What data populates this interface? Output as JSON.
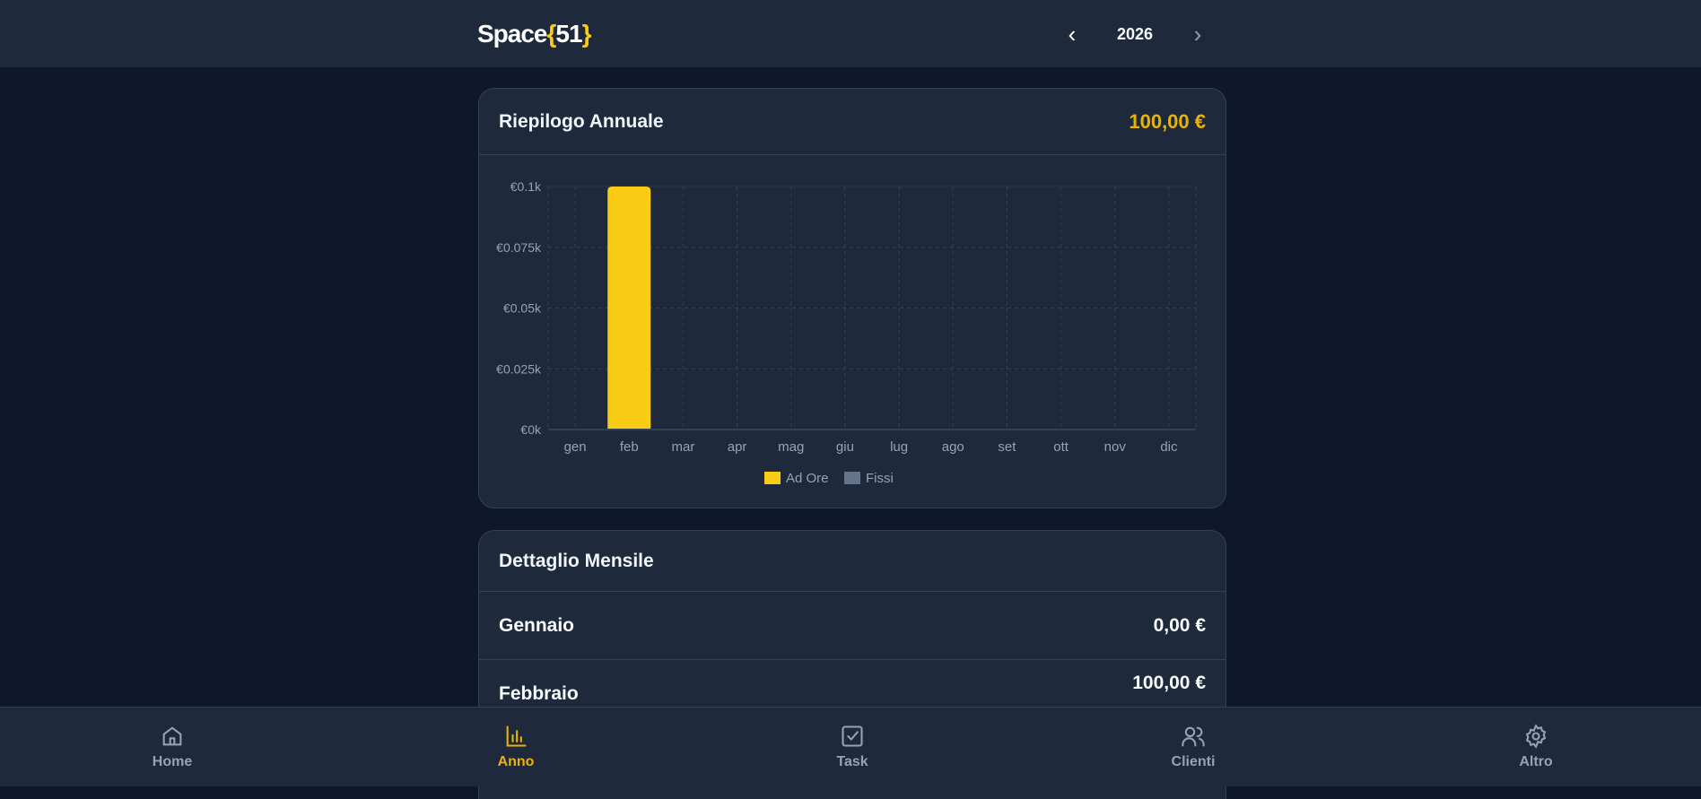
{
  "header": {
    "logo_prefix": "Space",
    "logo_open": "{",
    "logo_num": "51",
    "logo_close": "}",
    "year": "2026",
    "prev_icon": "chevron-left-icon",
    "next_icon": "chevron-right-icon"
  },
  "summary": {
    "title": "Riepilogo Annuale",
    "total": "100,00 €"
  },
  "chart_data": {
    "type": "bar",
    "stacked": true,
    "categories": [
      "gen",
      "feb",
      "mar",
      "apr",
      "mag",
      "giu",
      "lug",
      "ago",
      "set",
      "ott",
      "nov",
      "dic"
    ],
    "series": [
      {
        "name": "Ad Ore",
        "color": "#facc15",
        "values": [
          0,
          100,
          0,
          0,
          0,
          0,
          0,
          0,
          0,
          0,
          0,
          0
        ]
      },
      {
        "name": "Fissi",
        "color": "#64748b",
        "values": [
          0,
          0,
          0,
          0,
          0,
          0,
          0,
          0,
          0,
          0,
          0,
          0
        ]
      }
    ],
    "yticks": [
      "€0k",
      "€0.025k",
      "€0.05k",
      "€0.075k",
      "€0.1k"
    ],
    "ylim": [
      0,
      100
    ],
    "grid": true,
    "legend": "bottom"
  },
  "monthly": {
    "title": "Dettaglio Mensile",
    "rows": [
      {
        "month": "Gennaio",
        "amount": "0,00 €"
      },
      {
        "month": "Febbraio",
        "amount": "100,00 €"
      }
    ]
  },
  "nav": [
    {
      "label": "Home",
      "icon": "home-icon"
    },
    {
      "label": "Anno",
      "icon": "bar-chart-icon",
      "active": true
    },
    {
      "label": "Task",
      "icon": "checkbox-icon"
    },
    {
      "label": "Clienti",
      "icon": "users-icon"
    },
    {
      "label": "Altro",
      "icon": "gear-icon"
    }
  ]
}
